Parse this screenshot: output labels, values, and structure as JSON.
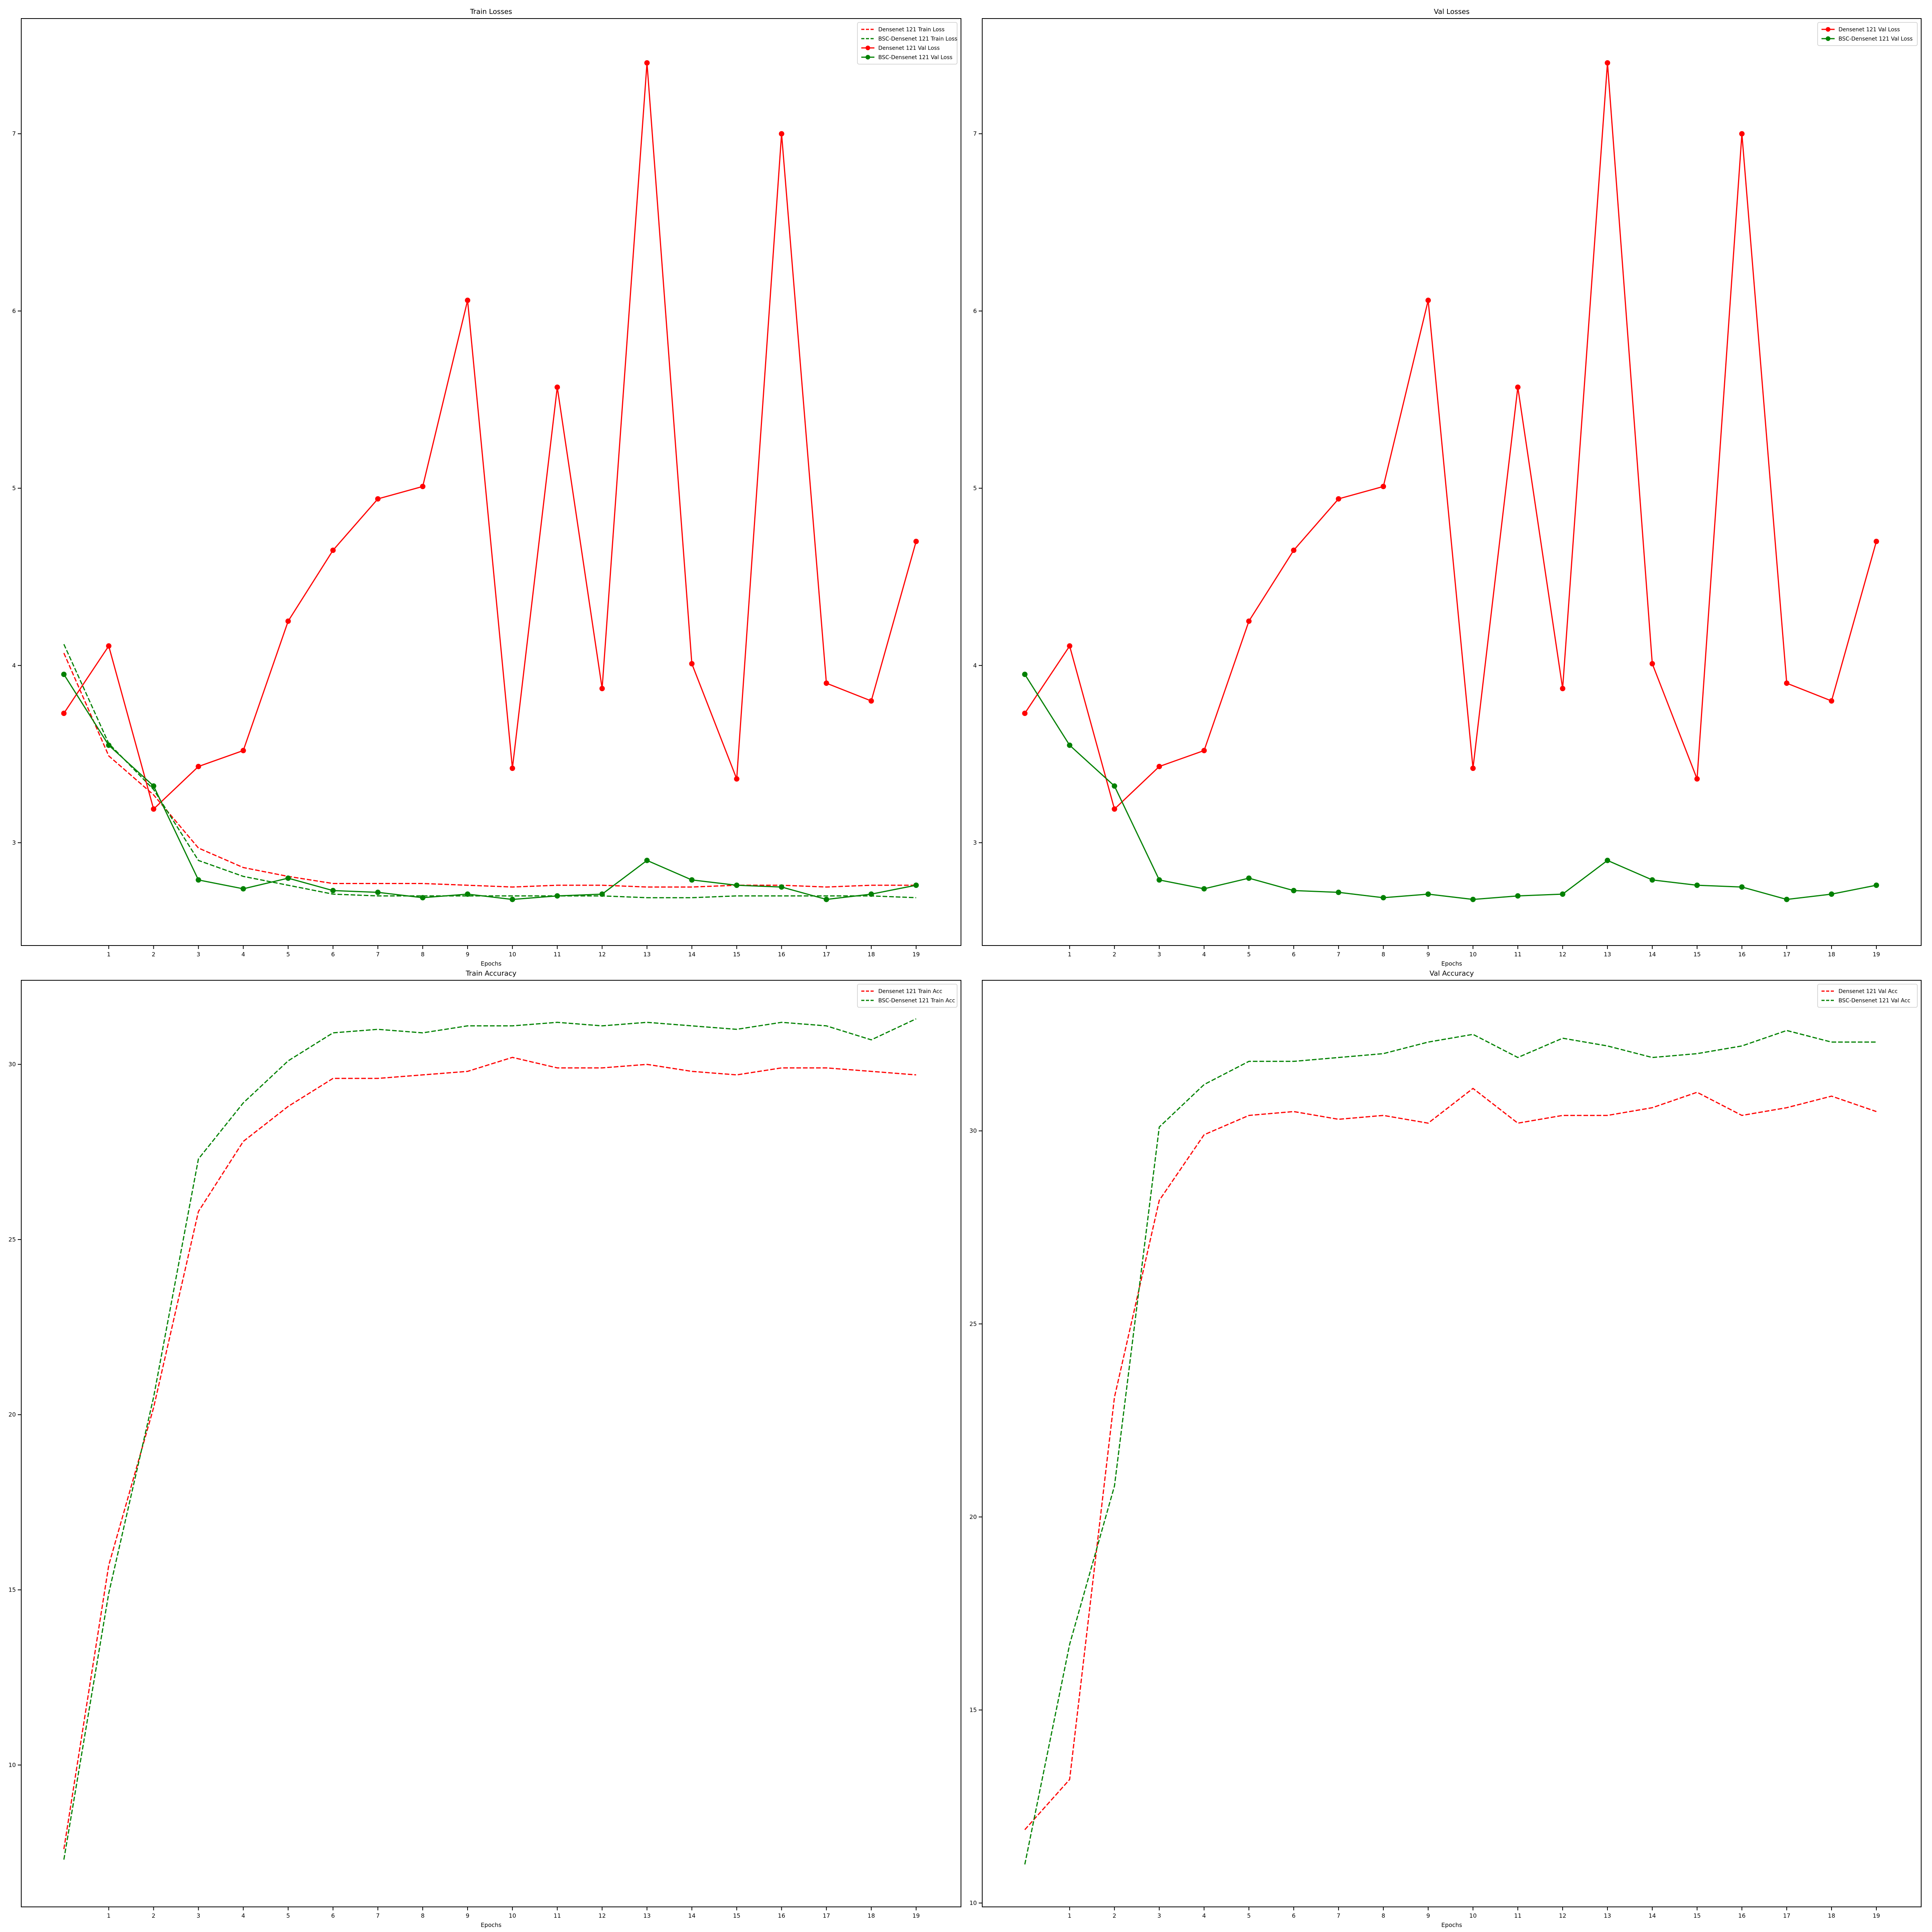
{
  "chart_data": [
    {
      "type": "line",
      "title": "Train Losses",
      "xlabel": "Epochs",
      "ylabel": "",
      "x": [
        0,
        1,
        2,
        3,
        4,
        5,
        6,
        7,
        8,
        9,
        10,
        11,
        12,
        13,
        14,
        15,
        16,
        17,
        18,
        19
      ],
      "xticks": [
        "1",
        "2",
        "3",
        "4",
        "5",
        "6",
        "7",
        "8",
        "9",
        "10",
        "11",
        "12",
        "13",
        "14",
        "15",
        "16",
        "17",
        "18",
        "19"
      ],
      "yticks": [
        "3",
        "4",
        "5",
        "6",
        "7"
      ],
      "ylim": [
        2.42,
        7.65
      ],
      "legend": "top-right",
      "series": [
        {
          "name": "Densenet 121 Train Loss",
          "color": "#ff0000",
          "style": "dashed",
          "marker": false,
          "values": [
            4.07,
            3.49,
            3.27,
            2.97,
            2.86,
            2.81,
            2.77,
            2.77,
            2.77,
            2.76,
            2.75,
            2.76,
            2.76,
            2.75,
            2.75,
            2.76,
            2.76,
            2.75,
            2.76,
            2.76
          ]
        },
        {
          "name": "BSC-Densenet 121 Train Loss",
          "color": "#008000",
          "style": "dashed",
          "marker": false,
          "values": [
            4.12,
            3.56,
            3.3,
            2.9,
            2.81,
            2.76,
            2.71,
            2.7,
            2.7,
            2.7,
            2.7,
            2.7,
            2.7,
            2.69,
            2.69,
            2.7,
            2.7,
            2.7,
            2.7,
            2.69
          ]
        },
        {
          "name": "Densenet 121 Val Loss",
          "color": "#ff0000",
          "style": "solid",
          "marker": true,
          "values": [
            3.73,
            4.11,
            3.19,
            3.43,
            3.52,
            4.25,
            4.65,
            4.94,
            5.01,
            6.06,
            3.42,
            5.57,
            3.87,
            7.4,
            4.01,
            3.36,
            7.0,
            3.9,
            3.8,
            4.7
          ]
        },
        {
          "name": "BSC-Densenet 121 Val Loss",
          "color": "#008000",
          "style": "solid",
          "marker": true,
          "values": [
            3.95,
            3.55,
            3.32,
            2.79,
            2.74,
            2.8,
            2.73,
            2.72,
            2.69,
            2.71,
            2.68,
            2.7,
            2.71,
            2.9,
            2.79,
            2.76,
            2.75,
            2.68,
            2.71,
            2.76
          ]
        }
      ]
    },
    {
      "type": "line",
      "title": "Val Losses",
      "xlabel": "Epochs",
      "ylabel": "",
      "x": [
        0,
        1,
        2,
        3,
        4,
        5,
        6,
        7,
        8,
        9,
        10,
        11,
        12,
        13,
        14,
        15,
        16,
        17,
        18,
        19
      ],
      "xticks": [
        "1",
        "2",
        "3",
        "4",
        "5",
        "6",
        "7",
        "8",
        "9",
        "10",
        "11",
        "12",
        "13",
        "14",
        "15",
        "16",
        "17",
        "18",
        "19"
      ],
      "yticks": [
        "3",
        "4",
        "5",
        "6",
        "7"
      ],
      "ylim": [
        2.42,
        7.65
      ],
      "legend": "top-right",
      "series": [
        {
          "name": "Densenet 121 Val Loss",
          "color": "#ff0000",
          "style": "solid",
          "marker": true,
          "values": [
            3.73,
            4.11,
            3.19,
            3.43,
            3.52,
            4.25,
            4.65,
            4.94,
            5.01,
            6.06,
            3.42,
            5.57,
            3.87,
            7.4,
            4.01,
            3.36,
            7.0,
            3.9,
            3.8,
            4.7
          ]
        },
        {
          "name": "BSC-Densenet 121 Val Loss",
          "color": "#008000",
          "style": "solid",
          "marker": true,
          "values": [
            3.95,
            3.55,
            3.32,
            2.79,
            2.74,
            2.8,
            2.73,
            2.72,
            2.69,
            2.71,
            2.68,
            2.7,
            2.71,
            2.9,
            2.79,
            2.76,
            2.75,
            2.68,
            2.71,
            2.76
          ]
        }
      ]
    },
    {
      "type": "line",
      "title": "Train Accuracy",
      "xlabel": "Epochs",
      "ylabel": "",
      "x": [
        0,
        1,
        2,
        3,
        4,
        5,
        6,
        7,
        8,
        9,
        10,
        11,
        12,
        13,
        14,
        15,
        16,
        17,
        18,
        19
      ],
      "xticks": [
        "1",
        "2",
        "3",
        "4",
        "5",
        "6",
        "7",
        "8",
        "9",
        "10",
        "11",
        "12",
        "13",
        "14",
        "15",
        "16",
        "17",
        "18",
        "19"
      ],
      "yticks": [
        "10",
        "15",
        "20",
        "25",
        "30"
      ],
      "ylim": [
        5.95,
        32.4
      ],
      "legend": "top-right",
      "series": [
        {
          "name": "Densenet 121 Train Acc",
          "color": "#ff0000",
          "style": "dashed",
          "marker": false,
          "values": [
            7.6,
            15.7,
            20.2,
            25.8,
            27.8,
            28.8,
            29.6,
            29.6,
            29.7,
            29.8,
            30.2,
            29.9,
            29.9,
            30.0,
            29.8,
            29.7,
            29.9,
            29.9,
            29.8,
            29.7
          ]
        },
        {
          "name": "BSC-Densenet 121 Train Acc",
          "color": "#008000",
          "style": "dashed",
          "marker": false,
          "values": [
            7.3,
            14.9,
            20.5,
            27.3,
            28.9,
            30.1,
            30.9,
            31.0,
            30.9,
            31.1,
            31.1,
            31.2,
            31.1,
            31.2,
            31.1,
            31.0,
            31.2,
            31.1,
            30.7,
            31.3
          ]
        }
      ]
    },
    {
      "type": "line",
      "title": "Val Accuracy",
      "xlabel": "Epochs",
      "ylabel": "",
      "x": [
        0,
        1,
        2,
        3,
        4,
        5,
        6,
        7,
        8,
        9,
        10,
        11,
        12,
        13,
        14,
        15,
        16,
        17,
        18,
        19
      ],
      "xticks": [
        "1",
        "2",
        "3",
        "4",
        "5",
        "6",
        "7",
        "8",
        "9",
        "10",
        "11",
        "12",
        "13",
        "14",
        "15",
        "16",
        "17",
        "18",
        "19"
      ],
      "yticks": [
        "10",
        "15",
        "20",
        "25",
        "30"
      ],
      "ylim": [
        9.9,
        33.9
      ],
      "legend": "top-right",
      "series": [
        {
          "name": "Densenet 121 Val Acc",
          "color": "#ff0000",
          "style": "dashed",
          "marker": false,
          "values": [
            11.9,
            13.2,
            23.1,
            28.2,
            29.9,
            30.4,
            30.5,
            30.3,
            30.4,
            30.2,
            31.1,
            30.2,
            30.4,
            30.4,
            30.6,
            31.0,
            30.4,
            30.6,
            30.9,
            30.5
          ]
        },
        {
          "name": "BSC-Densenet 121 Val Acc",
          "color": "#008000",
          "style": "dashed",
          "marker": false,
          "values": [
            11.0,
            16.7,
            20.8,
            30.1,
            31.2,
            31.8,
            31.8,
            31.9,
            32.0,
            32.3,
            32.5,
            31.9,
            32.4,
            32.2,
            31.9,
            32.0,
            32.2,
            32.6,
            32.3,
            32.3
          ]
        }
      ]
    }
  ]
}
